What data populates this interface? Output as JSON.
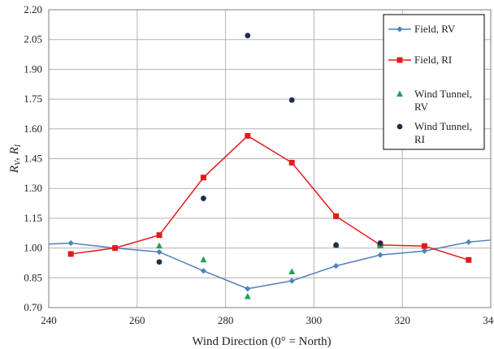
{
  "chart_data": {
    "type": "scatter",
    "title": "",
    "xlabel": "Wind Direction (0° = North)",
    "ylabel_main": "R",
    "ylabel_sub1": "V",
    "ylabel_sep": ", R",
    "ylabel_sub2": "I",
    "xlim": [
      240,
      340
    ],
    "ylim": [
      0.7,
      2.2
    ],
    "x_ticks": [
      240,
      260,
      280,
      300,
      320,
      340
    ],
    "y_ticks": [
      0.7,
      0.85,
      1.0,
      1.15,
      1.3,
      1.45,
      1.6,
      1.75,
      1.9,
      2.05,
      2.2
    ],
    "y_tick_labels": [
      "0.70",
      "0.85",
      "1.00",
      "1.15",
      "1.30",
      "1.45",
      "1.60",
      "1.75",
      "1.90",
      "2.05",
      "2.20"
    ],
    "grid": true,
    "legend_position": "top-right",
    "series": [
      {
        "name": "Field, RV",
        "legend_lines": [
          "Field, RV"
        ],
        "style": "line-diamond",
        "color": "#4f81bd",
        "line_start": [
          240,
          1.02
        ],
        "line_end": [
          340,
          1.04
        ],
        "x": [
          245,
          255,
          265,
          275,
          285,
          295,
          305,
          315,
          325,
          335
        ],
        "y": [
          1.025,
          1.0,
          0.98,
          0.885,
          0.795,
          0.835,
          0.91,
          0.965,
          0.985,
          1.03
        ]
      },
      {
        "name": "Field, RI",
        "legend_lines": [
          "Field, RI"
        ],
        "style": "line-square",
        "color": "#e31a1c",
        "x": [
          245,
          255,
          265,
          275,
          285,
          295,
          305,
          315,
          325,
          335
        ],
        "y": [
          0.97,
          1.0,
          1.065,
          1.355,
          1.565,
          1.43,
          1.16,
          1.015,
          1.01,
          0.94
        ]
      },
      {
        "name": "Wind Tunnel, RV",
        "legend_lines": [
          "Wind Tunnel,",
          "RV"
        ],
        "style": "triangle",
        "color": "#1ea35a",
        "x": [
          265,
          275,
          285,
          295,
          305,
          315
        ],
        "y": [
          1.01,
          0.94,
          0.755,
          0.88,
          1.015,
          1.01
        ]
      },
      {
        "name": "Wind Tunnel, RI",
        "legend_lines": [
          "Wind Tunnel,",
          "RI"
        ],
        "style": "circle",
        "color": "#1f2d4e",
        "x": [
          265,
          275,
          285,
          295,
          305,
          315
        ],
        "y": [
          0.93,
          1.25,
          2.07,
          1.745,
          1.015,
          1.025
        ]
      }
    ]
  }
}
